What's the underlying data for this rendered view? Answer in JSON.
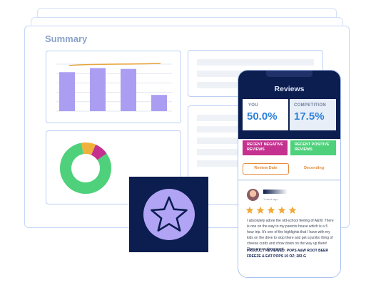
{
  "dashboard": {
    "title": "Summary",
    "bar_chart": {
      "bars": [
        0.48,
        0.53,
        0.52,
        0.2
      ],
      "line_level": 0.58
    },
    "donut": {
      "segments": [
        {
          "value": 0.82,
          "color": "#4fd17c"
        },
        {
          "value": 0.09,
          "color": "#f0b13b"
        },
        {
          "value": 0.09,
          "color": "#c4318f"
        }
      ]
    }
  },
  "phone": {
    "title": "Reviews",
    "you": {
      "label": "YOU",
      "value": "50.0%"
    },
    "competition": {
      "label": "COMPETITION",
      "value": "17.5%"
    },
    "buttons": {
      "negative": "RECENT NEGATIVE REVIEWS",
      "positive": "RECENT POSITIVE REVIEWS"
    },
    "tabs": {
      "review_date": "Review Date",
      "descending": "Decending"
    },
    "review": {
      "time": "1 week ago",
      "rating": 5,
      "body": "I absolutely adore the old-school feeling of A&W. There is one on the way to my parents house which is a 5 hour trip. It's one of the highlights that I have with my kids on the drive to stop there and get a jumbo thing of cheese curds and chow down on the way up there! They are so dang good",
      "product": "PRODUCT REVIEWED: POPS A&W ROOT BEER FREEZE & EAT POPS 10 OZ; 283 G"
    }
  },
  "colors": {
    "navy": "#0c1d4f",
    "accent_blue": "#2f82d9",
    "bar_purple": "#ab9ef2",
    "line_orange": "#e8a33b",
    "negative": "#c4318f",
    "positive": "#4fd17c",
    "star_gold": "#f2a93b",
    "star_badge": "#b1a4f4"
  },
  "icons": {
    "badge": "star-icon"
  }
}
